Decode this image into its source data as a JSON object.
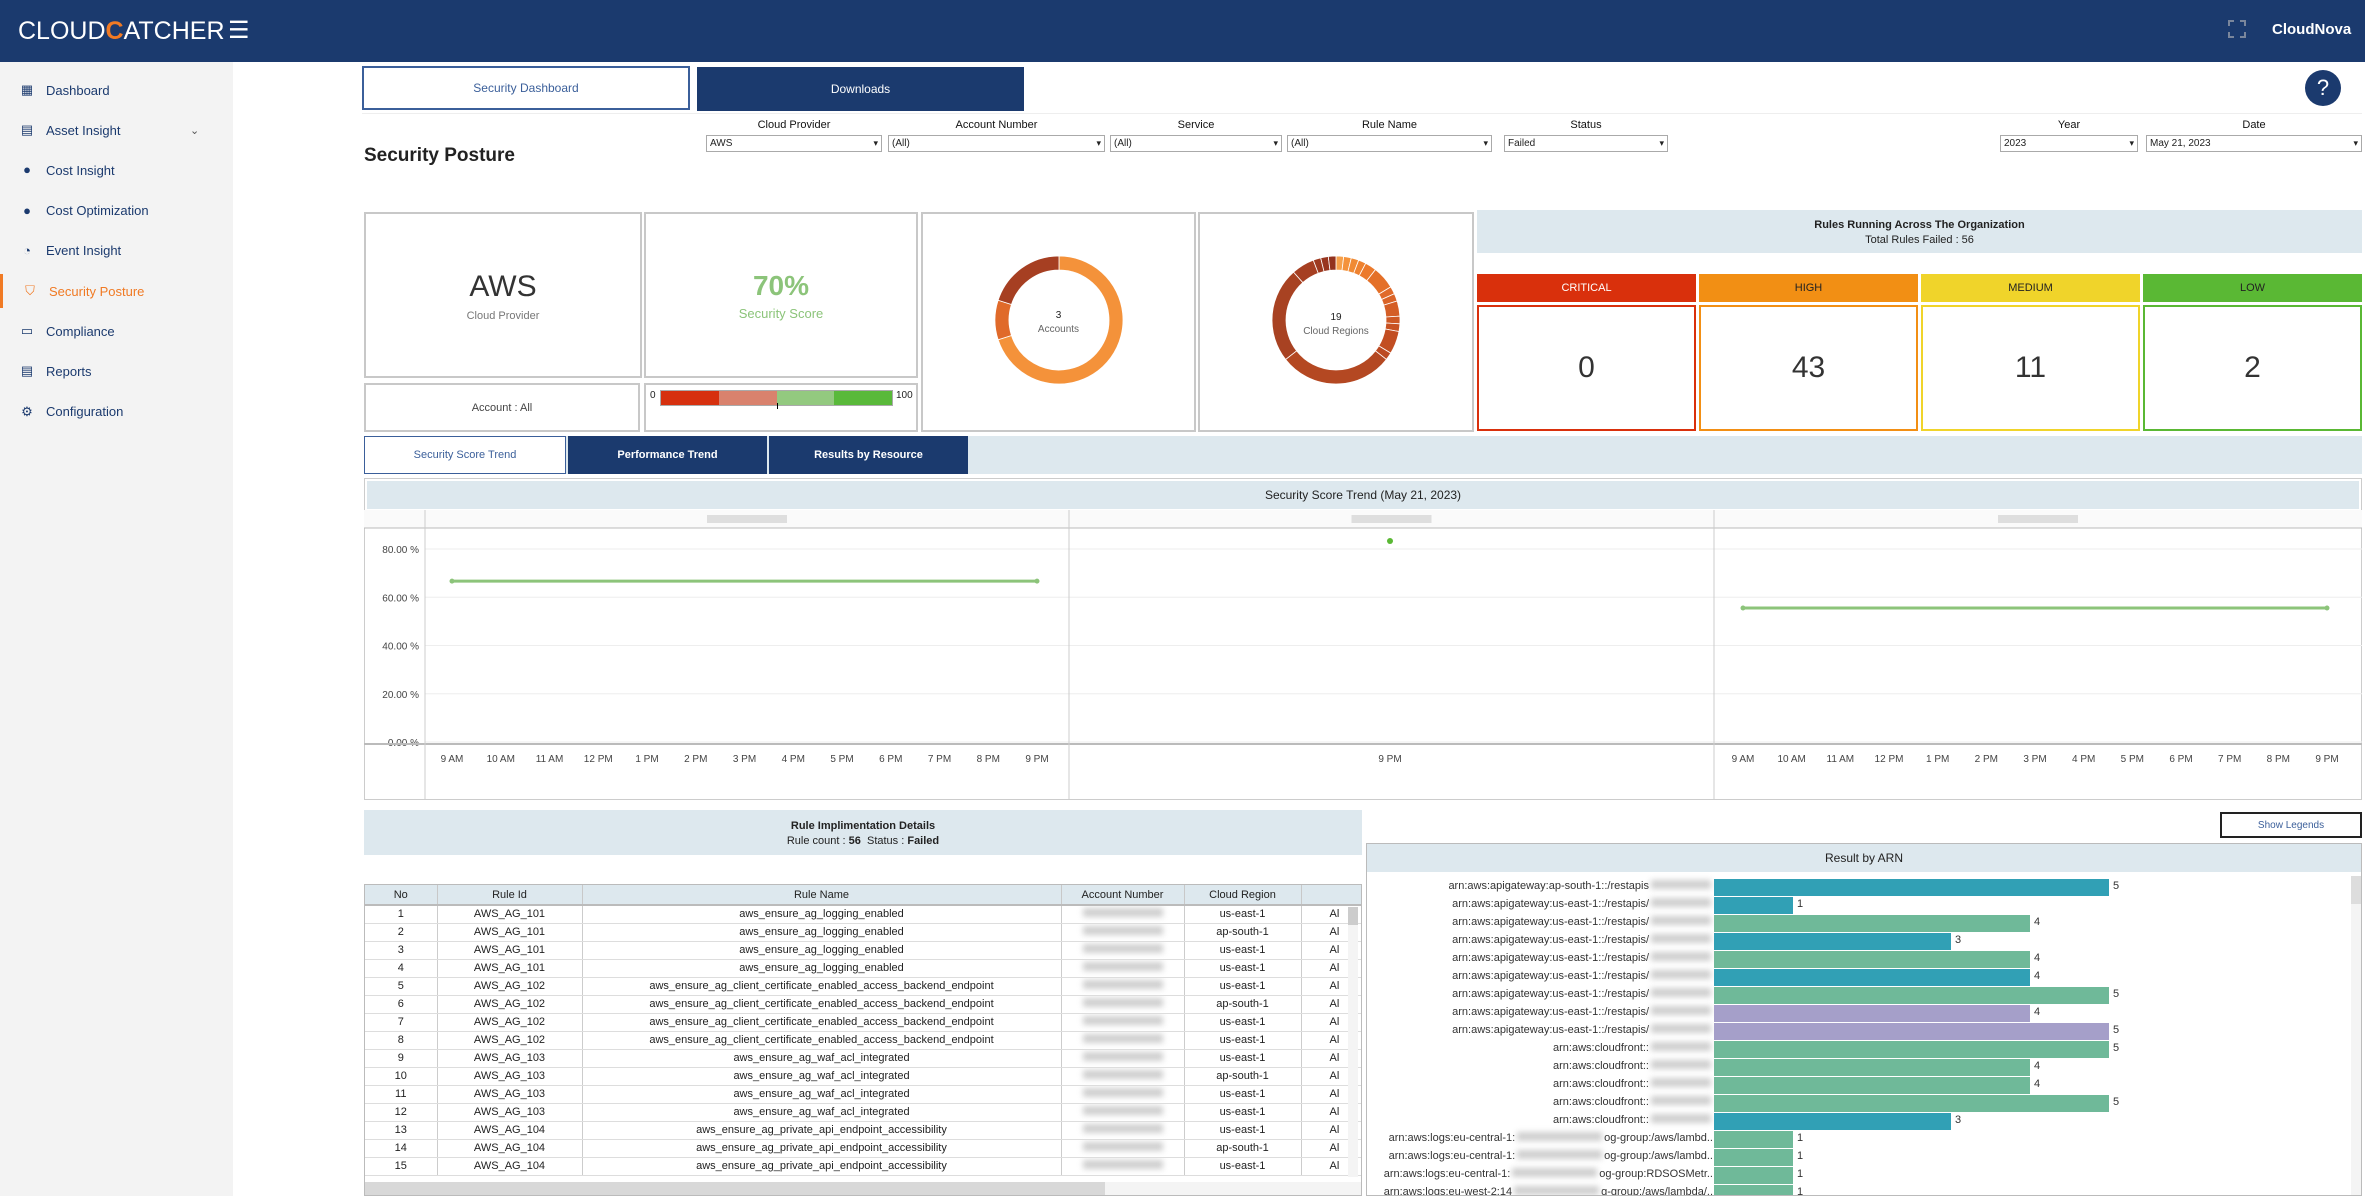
{
  "header": {
    "logo_pre": "CLOUD",
    "logo_c": "C",
    "logo_post": "ATCHER",
    "user": "CloudNova"
  },
  "sidebar": {
    "items": [
      {
        "label": "Dashboard",
        "icon": "dashboard-icon"
      },
      {
        "label": "Asset Insight",
        "icon": "asset-icon",
        "expandable": true
      },
      {
        "label": "Cost Insight",
        "icon": "dollar-icon"
      },
      {
        "label": "Cost Optimization",
        "icon": "dollar-icon"
      },
      {
        "label": "Event Insight",
        "icon": "pie-icon"
      },
      {
        "label": "Security Posture",
        "icon": "shield-icon",
        "active": true
      },
      {
        "label": "Compliance",
        "icon": "clipboard-icon"
      },
      {
        "label": "Reports",
        "icon": "report-icon"
      },
      {
        "label": "Configuration",
        "icon": "gear-icon"
      }
    ]
  },
  "top_tabs": {
    "security_dashboard": "Security Dashboard",
    "downloads": "Downloads"
  },
  "page_title": "Security Posture",
  "filters": {
    "cloud_provider": {
      "label": "Cloud Provider",
      "value": "AWS"
    },
    "account_number": {
      "label": "Account Number",
      "value": "(All)"
    },
    "service": {
      "label": "Service",
      "value": "(All)"
    },
    "rule_name": {
      "label": "Rule Name",
      "value": "(All)"
    },
    "status": {
      "label": "Status",
      "value": "Failed"
    },
    "year": {
      "label": "Year",
      "value": "2023"
    },
    "date": {
      "label": "Date",
      "value": "May 21, 2023"
    }
  },
  "cards": {
    "provider": {
      "value": "AWS",
      "label": "Cloud Provider"
    },
    "score": {
      "value": "70%",
      "label": "Security Score",
      "gauge_min": "0",
      "gauge_max": "100",
      "gauge_marker": 50
    },
    "account": "Account : All",
    "accounts": {
      "value": "3",
      "label": "Accounts"
    },
    "regions": {
      "value": "19",
      "label": "Cloud Regions"
    }
  },
  "rules": {
    "title": "Rules Running Across The Organization",
    "total": "Total Rules Failed : 56",
    "severity": [
      {
        "label": "CRITICAL",
        "value": "0",
        "color": "#d9300c",
        "text": "#ffffff"
      },
      {
        "label": "HIGH",
        "value": "43",
        "color": "#f28f14",
        "text": "#222222"
      },
      {
        "label": "MEDIUM",
        "value": "11",
        "color": "#f0d42a",
        "text": "#222222"
      },
      {
        "label": "LOW",
        "value": "2",
        "color": "#5ab834",
        "text": "#222222"
      }
    ]
  },
  "trend_tabs": {
    "security_score_trend": "Security Score Trend",
    "performance_trend": "Performance Trend",
    "results_by_resource": "Results by Resource"
  },
  "chart_data": {
    "type": "line",
    "title": "Security Score Trend (May 21, 2023)",
    "ylim": [
      0,
      85
    ],
    "yticks": [
      "0.00 %",
      "20.00 %",
      "40.00 %",
      "60.00 %",
      "80.00 %"
    ],
    "ytick_values": [
      0,
      20,
      40,
      60,
      80
    ],
    "grid": true,
    "panels": [
      {
        "x": [
          "9 AM",
          "10 AM",
          "11 AM",
          "12 PM",
          "1 PM",
          "2 PM",
          "3 PM",
          "4 PM",
          "5 PM",
          "6 PM",
          "7 PM",
          "8 PM",
          "9 PM"
        ],
        "series": [
          {
            "x": [
              "9 AM",
              "9 PM"
            ],
            "values": [
              66.67,
              66.67
            ]
          }
        ]
      },
      {
        "x": [
          "9 PM"
        ],
        "series": [
          {
            "x": [
              "9 PM"
            ],
            "values": [
              83.33
            ]
          }
        ]
      },
      {
        "x": [
          "9 AM",
          "10 AM",
          "11 AM",
          "12 PM",
          "1 PM",
          "2 PM",
          "3 PM",
          "4 PM",
          "5 PM",
          "6 PM",
          "7 PM",
          "8 PM",
          "9 PM"
        ],
        "series": [
          {
            "x": [
              "9 AM",
              "9 PM"
            ],
            "values": [
              55.56,
              55.56
            ]
          }
        ]
      }
    ],
    "color": "#8cc47a"
  },
  "rule_details": {
    "title": "Rule Implimentation Details",
    "count_label": "Rule count :",
    "count": "56",
    "status_label": "Status :",
    "status": "Failed",
    "columns": [
      "No",
      "Rule Id",
      "Rule Name",
      "Account Number",
      "Cloud Region",
      ""
    ],
    "rows": [
      [
        "1",
        "AWS_AG_101",
        "aws_ensure_ag_logging_enabled",
        "us-east-1",
        "Al"
      ],
      [
        "2",
        "AWS_AG_101",
        "aws_ensure_ag_logging_enabled",
        "ap-south-1",
        "Al"
      ],
      [
        "3",
        "AWS_AG_101",
        "aws_ensure_ag_logging_enabled",
        "us-east-1",
        "Al"
      ],
      [
        "4",
        "AWS_AG_101",
        "aws_ensure_ag_logging_enabled",
        "us-east-1",
        "Al"
      ],
      [
        "5",
        "AWS_AG_102",
        "aws_ensure_ag_client_certificate_enabled_access_backend_endpoint",
        "us-east-1",
        "Al"
      ],
      [
        "6",
        "AWS_AG_102",
        "aws_ensure_ag_client_certificate_enabled_access_backend_endpoint",
        "ap-south-1",
        "Al"
      ],
      [
        "7",
        "AWS_AG_102",
        "aws_ensure_ag_client_certificate_enabled_access_backend_endpoint",
        "us-east-1",
        "Al"
      ],
      [
        "8",
        "AWS_AG_102",
        "aws_ensure_ag_client_certificate_enabled_access_backend_endpoint",
        "us-east-1",
        "Al"
      ],
      [
        "9",
        "AWS_AG_103",
        "aws_ensure_ag_waf_acl_integrated",
        "us-east-1",
        "Al"
      ],
      [
        "10",
        "AWS_AG_103",
        "aws_ensure_ag_waf_acl_integrated",
        "ap-south-1",
        "Al"
      ],
      [
        "11",
        "AWS_AG_103",
        "aws_ensure_ag_waf_acl_integrated",
        "us-east-1",
        "Al"
      ],
      [
        "12",
        "AWS_AG_103",
        "aws_ensure_ag_waf_acl_integrated",
        "us-east-1",
        "Al"
      ],
      [
        "13",
        "AWS_AG_104",
        "aws_ensure_ag_private_api_endpoint_accessibility",
        "us-east-1",
        "Al"
      ],
      [
        "14",
        "AWS_AG_104",
        "aws_ensure_ag_private_api_endpoint_accessibility",
        "ap-south-1",
        "Al"
      ],
      [
        "15",
        "AWS_AG_104",
        "aws_ensure_ag_private_api_endpoint_accessibility",
        "us-east-1",
        "Al"
      ]
    ]
  },
  "show_legends": "Show Legends",
  "arn_chart": {
    "title": "Result by ARN",
    "max": 5,
    "rows": [
      {
        "pre": "arn:aws:apigateway:ap-south-1::/restapis",
        "post": "",
        "value": 5,
        "color": "#31a0b5"
      },
      {
        "pre": "arn:aws:apigateway:us-east-1::/restapis/",
        "post": "",
        "value": 1,
        "color": "#31a0b5"
      },
      {
        "pre": "arn:aws:apigateway:us-east-1::/restapis/",
        "post": "",
        "value": 4,
        "color": "#6fb999"
      },
      {
        "pre": "arn:aws:apigateway:us-east-1::/restapis/",
        "post": "",
        "value": 3,
        "color": "#31a0b5"
      },
      {
        "pre": "arn:aws:apigateway:us-east-1::/restapis/",
        "post": "",
        "value": 4,
        "color": "#6fb999"
      },
      {
        "pre": "arn:aws:apigateway:us-east-1::/restapis/",
        "post": "",
        "value": 4,
        "color": "#31a0b5"
      },
      {
        "pre": "arn:aws:apigateway:us-east-1::/restapis/",
        "post": "",
        "value": 5,
        "color": "#6fb999"
      },
      {
        "pre": "arn:aws:apigateway:us-east-1::/restapis/",
        "post": "",
        "value": 4,
        "color": "#a59fc9"
      },
      {
        "pre": "arn:aws:apigateway:us-east-1::/restapis/",
        "post": "",
        "value": 5,
        "color": "#a59fc9"
      },
      {
        "pre": "arn:aws:cloudfront::",
        "post": "",
        "value": 5,
        "color": "#6fb999"
      },
      {
        "pre": "arn:aws:cloudfront::",
        "post": "",
        "value": 4,
        "color": "#6fb999"
      },
      {
        "pre": "arn:aws:cloudfront::",
        "post": "",
        "value": 4,
        "color": "#6fb999"
      },
      {
        "pre": "arn:aws:cloudfront::",
        "post": "",
        "value": 5,
        "color": "#6fb999"
      },
      {
        "pre": "arn:aws:cloudfront::",
        "post": "",
        "value": 3,
        "color": "#31a0b5"
      },
      {
        "pre": "arn:aws:logs:eu-central-1:",
        "post": "og-group:/aws/lambd..",
        "value": 1,
        "color": "#6fb999"
      },
      {
        "pre": "arn:aws:logs:eu-central-1:",
        "post": "og-group:/aws/lambd..",
        "value": 1,
        "color": "#6fb999"
      },
      {
        "pre": "arn:aws:logs:eu-central-1:",
        "post": "og-group:RDSOSMetr..",
        "value": 1,
        "color": "#6fb999"
      },
      {
        "pre": "arn:aws:logs:eu-west-2:14",
        "post": "g-group:/aws/lambda/..",
        "value": 1,
        "color": "#6fb999"
      }
    ]
  }
}
